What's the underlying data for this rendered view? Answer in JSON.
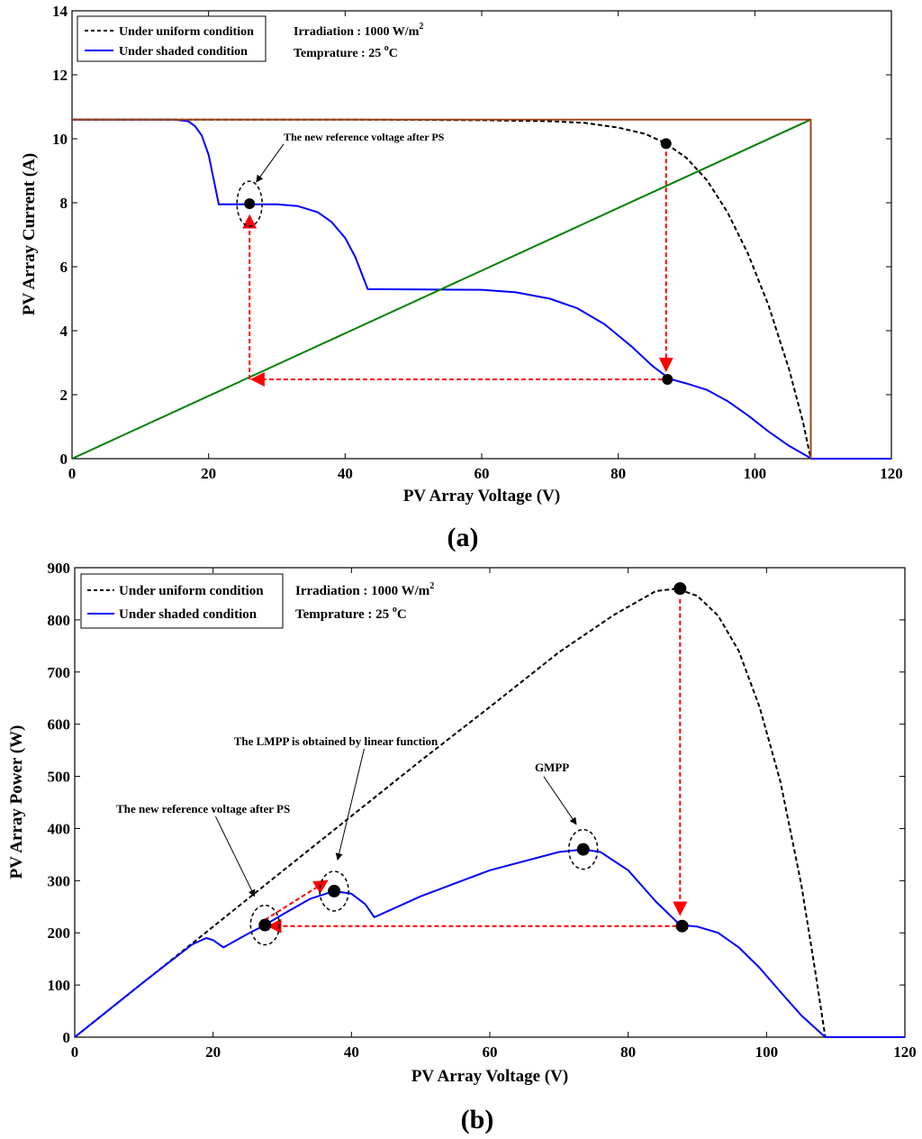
{
  "chart_data": [
    {
      "type": "line",
      "panel_label": "(a)",
      "panel_letter": "a",
      "xlabel": "PV Array Voltage (V)",
      "ylabel": "PV Array Current (A)",
      "xlim": [
        0,
        120
      ],
      "ylim": [
        0,
        14
      ],
      "xticks": [
        0,
        20,
        40,
        60,
        80,
        100,
        120
      ],
      "yticks": [
        0,
        2,
        4,
        6,
        8,
        10,
        12,
        14
      ],
      "legend": {
        "location": "top-left",
        "entries": [
          {
            "label": "Under uniform condition",
            "color": "#000000",
            "style": "dashed"
          },
          {
            "label": "Under shaded condition",
            "color": "#0000ff",
            "style": "solid"
          }
        ]
      },
      "info": {
        "irradiation_label": "Irradiation : 1000 W/m",
        "irradiation_sup": "2",
        "temperature_label": "Temprature : 25 ",
        "temperature_sup": "o",
        "temperature_unit": "C"
      },
      "series": [
        {
          "name": "Under uniform condition",
          "color": "#000000",
          "style": "dashed",
          "x": [
            0,
            20,
            40,
            60,
            70,
            75,
            80,
            84,
            87,
            90,
            93,
            96,
            99,
            102,
            105,
            107,
            108.2
          ],
          "y": [
            10.6,
            10.6,
            10.6,
            10.58,
            10.55,
            10.5,
            10.35,
            10.15,
            9.85,
            9.4,
            8.7,
            7.7,
            6.4,
            4.8,
            2.8,
            1.2,
            0
          ]
        },
        {
          "name": "Under shaded condition",
          "color": "#0000ff",
          "style": "solid",
          "x": [
            0,
            15,
            17,
            18,
            19,
            20,
            21.5,
            30,
            33,
            36,
            38,
            40,
            41.5,
            43.3,
            60,
            65,
            70,
            74,
            78,
            82,
            85,
            87.5,
            90,
            93,
            96,
            99,
            102,
            105,
            108.3,
            112,
            120
          ],
          "y": [
            10.6,
            10.6,
            10.55,
            10.4,
            10.1,
            9.5,
            7.95,
            7.95,
            7.9,
            7.7,
            7.4,
            6.9,
            6.3,
            5.3,
            5.28,
            5.2,
            5.0,
            4.7,
            4.2,
            3.5,
            2.9,
            2.5,
            2.35,
            2.15,
            1.8,
            1.35,
            0.85,
            0.4,
            0,
            0,
            0
          ]
        },
        {
          "name": "Linear function",
          "color": "#008000",
          "style": "solid",
          "x": [
            0,
            108.2
          ],
          "y": [
            0,
            10.6
          ]
        },
        {
          "name": "Boundary",
          "color": "#a0401a",
          "style": "solid",
          "x": [
            0,
            108.2,
            108.2
          ],
          "y": [
            10.6,
            10.6,
            0
          ]
        }
      ],
      "points": [
        {
          "name": "uniform-operating-point",
          "x": 87,
          "y": 9.85
        },
        {
          "name": "shaded-operating-point",
          "x": 87.2,
          "y": 2.48
        },
        {
          "name": "new-reference-point",
          "x": 26,
          "y": 7.97
        }
      ],
      "arrows": [
        {
          "name": "arrow-down",
          "from": [
            87,
            9.6
          ],
          "to": [
            87,
            2.75
          ]
        },
        {
          "name": "arrow-left",
          "from": [
            86.5,
            2.48
          ],
          "to": [
            26.3,
            2.48
          ]
        },
        {
          "name": "arrow-up",
          "from": [
            26,
            2.48
          ],
          "to": [
            26,
            7.6
          ]
        }
      ],
      "annotations": [
        {
          "text": "The new reference voltage after PS",
          "x": 31,
          "y": 9.95,
          "target": [
            27,
            8.65
          ]
        }
      ]
    },
    {
      "type": "line",
      "panel_label": "(b)",
      "panel_letter": "b",
      "xlabel": "PV Array Voltage (V)",
      "ylabel": "PV Array Power (W)",
      "xlim": [
        0,
        120
      ],
      "ylim": [
        0,
        900
      ],
      "xticks": [
        0,
        20,
        40,
        60,
        80,
        100,
        120
      ],
      "yticks": [
        0,
        100,
        200,
        300,
        400,
        500,
        600,
        700,
        800,
        900
      ],
      "legend": {
        "location": "top-left",
        "entries": [
          {
            "label": "Under uniform condition",
            "color": "#000000",
            "style": "dashed"
          },
          {
            "label": "Under shaded condition",
            "color": "#0000ff",
            "style": "solid"
          }
        ]
      },
      "info": {
        "irradiation_label": "Irradiation : 1000 W/m",
        "irradiation_sup": "2",
        "temperature_label": "Temprature : 25 ",
        "temperature_sup": "o",
        "temperature_unit": "C"
      },
      "series": [
        {
          "name": "Under uniform condition",
          "color": "#000000",
          "style": "dashed",
          "x": [
            0,
            17,
            20,
            30,
            40,
            50,
            60,
            70,
            78,
            84,
            87,
            90,
            93,
            96,
            99,
            102,
            105,
            107,
            108.5
          ],
          "y": [
            0,
            180,
            212,
            318,
            424,
            530,
            633,
            738,
            810,
            855,
            860,
            846,
            808,
            740,
            633,
            490,
            294,
            130,
            0
          ]
        },
        {
          "name": "Under shaded condition",
          "color": "#0000ff",
          "style": "solid",
          "x": [
            0,
            10,
            17,
            19,
            20,
            21.5,
            25,
            27.5,
            30,
            34,
            37,
            38,
            40,
            42,
            43.3,
            50,
            60,
            70,
            73.5,
            76,
            80,
            84,
            87.5,
            90,
            93,
            96,
            99,
            102,
            105,
            108.5,
            112,
            120
          ],
          "y": [
            0,
            106,
            178,
            190,
            186,
            172,
            198,
            215,
            235,
            265,
            278,
            279,
            275,
            255,
            230,
            270,
            320,
            355,
            360,
            355,
            320,
            260,
            215,
            212,
            200,
            172,
            133,
            87,
            42,
            0,
            0,
            0
          ]
        }
      ],
      "points": [
        {
          "name": "uniform-mpp-point",
          "x": 87.5,
          "y": 860
        },
        {
          "name": "shaded-operating-point",
          "x": 87.8,
          "y": 213
        },
        {
          "name": "new-reference-point",
          "x": 27.5,
          "y": 215
        },
        {
          "name": "lmpp-point",
          "x": 37.5,
          "y": 280
        },
        {
          "name": "gmpp-point",
          "x": 73.5,
          "y": 360
        }
      ],
      "arrows": [
        {
          "name": "arrow-down",
          "from": [
            87.5,
            840
          ],
          "to": [
            87.5,
            235
          ]
        },
        {
          "name": "arrow-left",
          "from": [
            87,
            213
          ],
          "to": [
            28,
            213
          ]
        },
        {
          "name": "arrow-diagonal",
          "from": [
            27.5,
            225
          ],
          "to": [
            36.5,
            300
          ]
        }
      ],
      "annotations": [
        {
          "text": "The new reference voltage after PS",
          "x": 6,
          "y": 430,
          "target": [
            26,
            270
          ]
        },
        {
          "text": "The  LMPP is obtained by linear function",
          "x": 23,
          "y": 560,
          "target": [
            38,
            340
          ]
        },
        {
          "text": "GMPP",
          "x": 66.5,
          "y": 510,
          "target": [
            72.5,
            408
          ]
        }
      ]
    }
  ]
}
